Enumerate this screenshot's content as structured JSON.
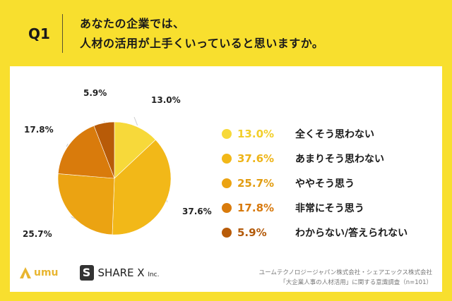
{
  "header": {
    "question": "Q1",
    "title_line1": "あなたの企業では、",
    "title_line2": "人材の活用が上手くいっていると思いますか。"
  },
  "chart_data": {
    "type": "pie",
    "title": "あなたの企業では、人材の活用が上手くいっていると思いますか。",
    "categories": [
      "全くそう思わない",
      "あまりそう思わない",
      "ややそう思う",
      "非常にそう思う",
      "わからない/答えられない"
    ],
    "values": [
      13.0,
      37.6,
      25.7,
      17.8,
      5.9
    ],
    "labels": [
      "13.0%",
      "37.6%",
      "25.7%",
      "17.8%",
      "5.9%"
    ],
    "colors": [
      "#f7d93a",
      "#f2b818",
      "#eba312",
      "#d97b0c",
      "#b85b08"
    ],
    "legend_position": "right",
    "start_angle": "12 o'clock, clockwise"
  },
  "legend_pct_colors": [
    "#f2cf2a",
    "#eeb417",
    "#e29d12",
    "#d7790d",
    "#b35a0a"
  ],
  "footer": {
    "logo_umu": "umu",
    "logo_sharex": "SHARE X",
    "logo_sharex_suffix": "Inc.",
    "credit_line1": "ユームテクノロジージャパン株式会社・シェアエックス株式会社",
    "credit_line2": "「大企業人事の人材活用」に関する意識調査（n=101）"
  }
}
